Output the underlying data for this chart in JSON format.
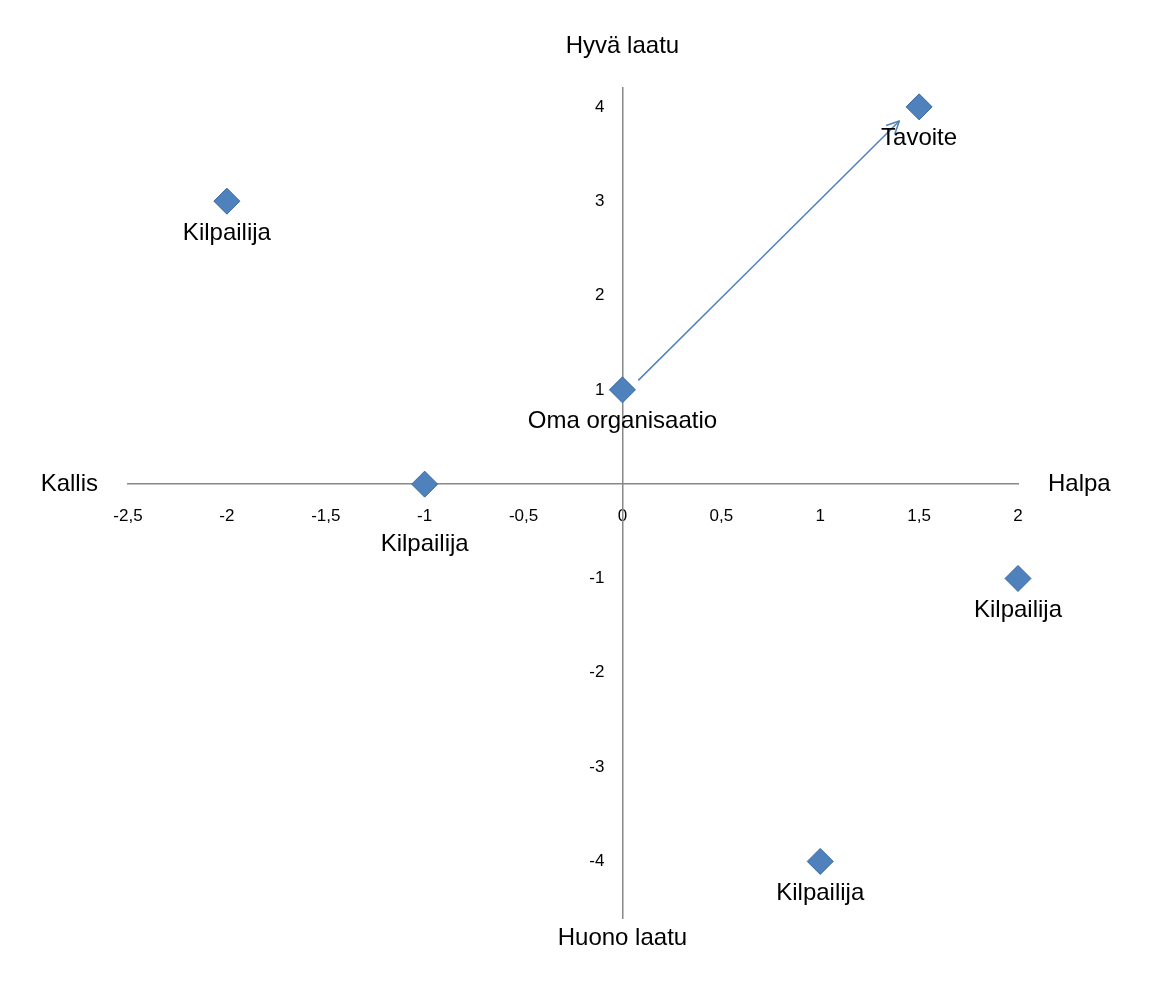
{
  "chart_data": {
    "type": "scatter",
    "xlim": [
      -2.5,
      2
    ],
    "ylim": [
      -4.6,
      4.2
    ],
    "xticks": [
      {
        "value": -2.5,
        "label": "-2,5"
      },
      -2,
      {
        "value": -1.5,
        "label": "-1,5"
      },
      -1,
      {
        "value": -0.5,
        "label": "-0,5"
      },
      0,
      {
        "value": 0.5,
        "label": "0,5"
      },
      1,
      {
        "value": 1.5,
        "label": "1,5"
      },
      2
    ],
    "yticks": [
      -4,
      -3,
      -2,
      -1,
      1,
      2,
      3,
      4
    ],
    "grid": false,
    "legend": false,
    "series": [
      {
        "type": "scatter",
        "color": "#4f81bd",
        "marker": "diamond",
        "x": [
          -2,
          -1,
          0,
          1.5,
          2,
          1
        ],
        "values": [
          3,
          0,
          1,
          4,
          -1,
          -4
        ]
      },
      {
        "type": "line",
        "color": "#4f81bd",
        "marker": "none",
        "line_style": "solid",
        "x": [
          0.08,
          1.4
        ],
        "values": [
          1.1,
          3.85
        ]
      }
    ],
    "annotations": [
      {
        "text": "Kilpailija",
        "x": -2,
        "y": 3
      },
      {
        "text": "Kilpailija",
        "x": -1,
        "y": 0
      },
      {
        "text": "Oma organisaatio",
        "x": 0,
        "y": 1
      },
      {
        "text": "Tavoite",
        "x": 1.5,
        "y": 4
      },
      {
        "text": "Kilpailija",
        "x": 2,
        "y": -1
      },
      {
        "text": "Kilpailija",
        "x": 1,
        "y": -4
      },
      "Hyvä laatu",
      "Huono laatu",
      "Kallis",
      "Halpa"
    ]
  }
}
